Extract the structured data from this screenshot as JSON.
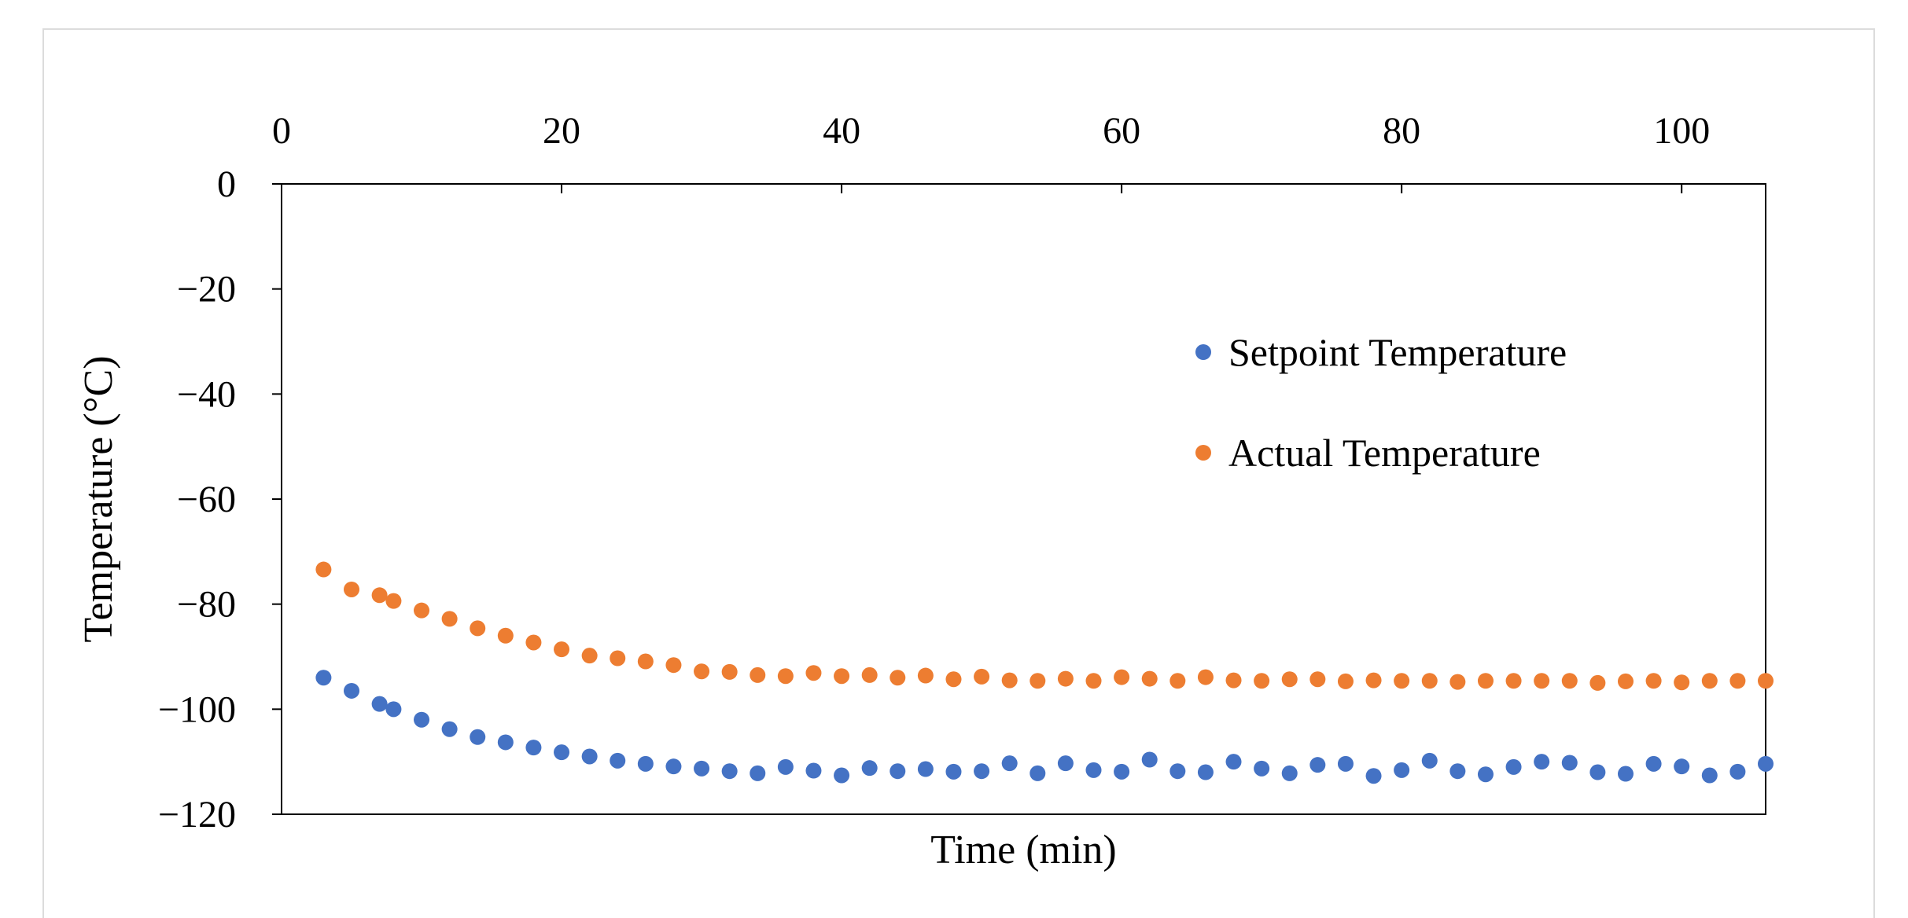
{
  "colors": {
    "setpoint": "#4472C4",
    "actual": "#ED7D31",
    "axis": "#000000",
    "frame": "#dcdcdc"
  },
  "chart_data": {
    "type": "scatter",
    "title": "",
    "xlabel": "Time (min)",
    "ylabel": "Temperature (°C)",
    "xlim": [
      0,
      106
    ],
    "ylim": [
      -120,
      0
    ],
    "x_ticks": [
      0,
      20,
      40,
      60,
      80,
      100
    ],
    "y_ticks": [
      0,
      -20,
      -40,
      -60,
      -80,
      -100,
      -120
    ],
    "x_axis_position": "top",
    "grid": false,
    "legend_position": "right-upper-middle",
    "series": [
      {
        "name": "Setpoint Temperature",
        "color": "#4472C4",
        "x": [
          3,
          5,
          7,
          8,
          10,
          12,
          14,
          16,
          18,
          20,
          22,
          24,
          26,
          28,
          30,
          32,
          34,
          36,
          38,
          40,
          42,
          44,
          46,
          48,
          50,
          52,
          54,
          56,
          58,
          60,
          62,
          64,
          66,
          68,
          70,
          72,
          74,
          76,
          78,
          80,
          82,
          84,
          86,
          88,
          90,
          92,
          94,
          96,
          98,
          100,
          102,
          104,
          106
        ],
        "y": [
          -94,
          -96.5,
          -99,
          -100,
          -102,
          -103.8,
          -105.3,
          -106.3,
          -107.3,
          -108.2,
          -109,
          -109.8,
          -110.4,
          -110.9,
          -111.3,
          -111.8,
          -112.2,
          -111,
          -111.7,
          -112.6,
          -111.2,
          -111.8,
          -111.4,
          -111.9,
          -111.8,
          -110.3,
          -112.2,
          -110.3,
          -111.6,
          -111.9,
          -109.6,
          -111.8,
          -112,
          -110,
          -111.3,
          -112.2,
          -110.6,
          -110.4,
          -112.7,
          -111.6,
          -109.8,
          -111.8,
          -112.4,
          -111,
          -110,
          -110.2,
          -112,
          -112.3,
          -110.4,
          -110.9,
          -112.6,
          -111.9,
          -110.4
        ]
      },
      {
        "name": "Actual Temperature",
        "color": "#ED7D31",
        "x": [
          3,
          5,
          7,
          8,
          10,
          12,
          14,
          16,
          18,
          20,
          22,
          24,
          26,
          28,
          30,
          32,
          34,
          36,
          38,
          40,
          42,
          44,
          46,
          48,
          50,
          52,
          54,
          56,
          58,
          60,
          62,
          64,
          66,
          68,
          70,
          72,
          74,
          76,
          78,
          80,
          82,
          84,
          86,
          88,
          90,
          92,
          94,
          96,
          98,
          100,
          102,
          104,
          106
        ],
        "y": [
          -73.4,
          -77.2,
          -78.3,
          -79.4,
          -81.2,
          -82.8,
          -84.6,
          -86,
          -87.3,
          -88.6,
          -89.8,
          -90.3,
          -90.9,
          -91.6,
          -92.8,
          -92.9,
          -93.5,
          -93.7,
          -93.1,
          -93.7,
          -93.5,
          -94,
          -93.6,
          -94.3,
          -93.8,
          -94.5,
          -94.6,
          -94.2,
          -94.6,
          -93.9,
          -94.2,
          -94.6,
          -93.9,
          -94.5,
          -94.6,
          -94.3,
          -94.3,
          -94.7,
          -94.5,
          -94.6,
          -94.6,
          -94.8,
          -94.6,
          -94.6,
          -94.6,
          -94.6,
          -95,
          -94.7,
          -94.6,
          -94.9,
          -94.6,
          -94.6,
          -94.6
        ]
      }
    ]
  }
}
